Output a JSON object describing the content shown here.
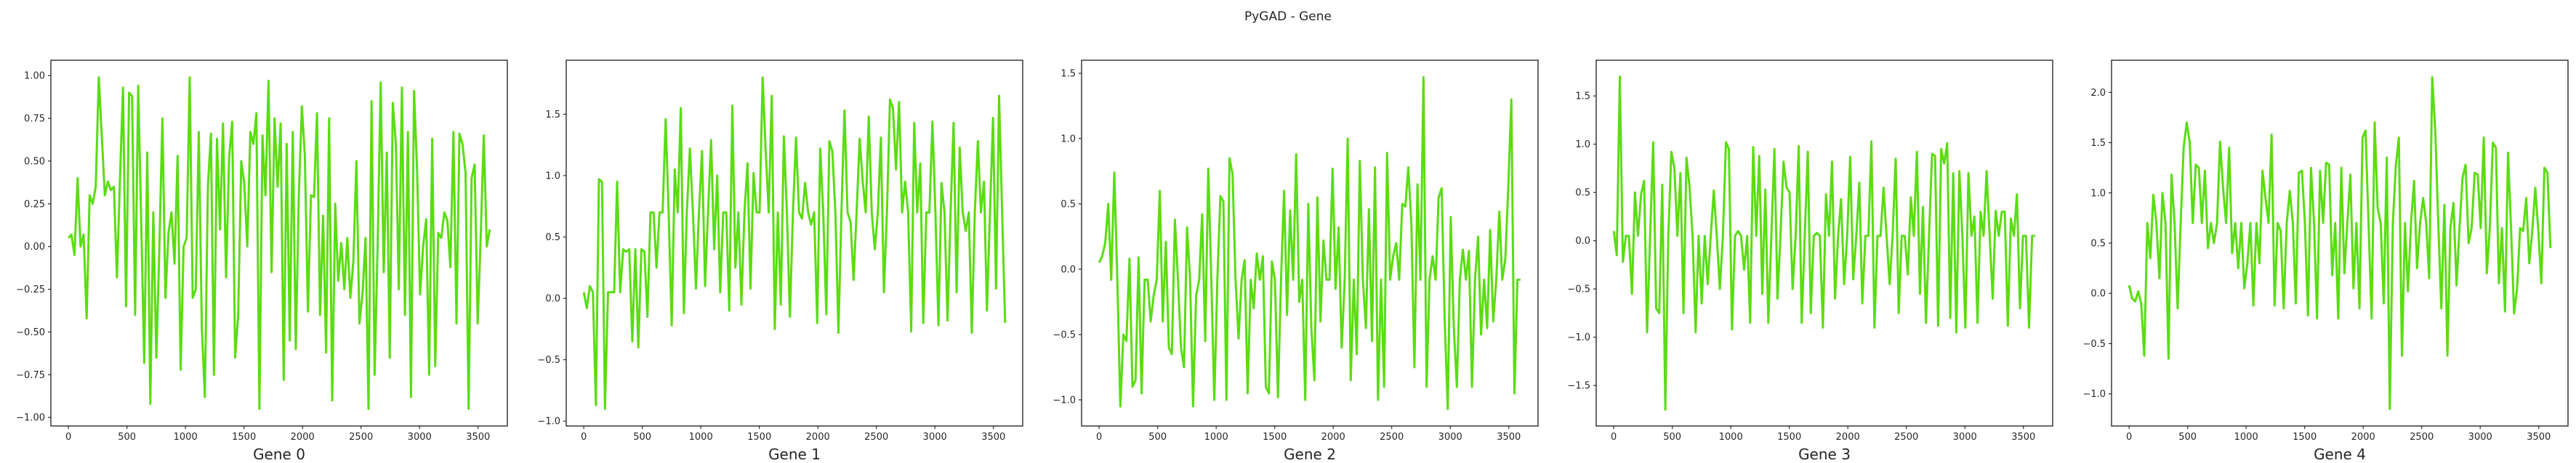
{
  "title": "PyGAD - Gene",
  "figure": {
    "background_color": "#ffffff",
    "line_color": "#5bdc13",
    "axis_color": "#2b2b2b",
    "text_color": "#262626"
  },
  "chart_data": [
    {
      "type": "line",
      "title": "Gene 0",
      "xlabel": "Gene 0",
      "ylabel": "",
      "legend": null,
      "grid": false,
      "x_max": 3600,
      "xlim": [
        -150,
        3750
      ],
      "ylim": [
        -1.05,
        1.09
      ],
      "xticks": [
        0,
        500,
        1000,
        1500,
        2000,
        2500,
        3000,
        3500
      ],
      "yticks": [
        1.0,
        0.75,
        0.5,
        0.25,
        0.0,
        -0.25,
        -0.5,
        -0.75,
        -1.0
      ],
      "ytick_labels": [
        "1.00",
        "0.75",
        "0.50",
        "0.25",
        "0.00",
        "−0.25",
        "−0.50",
        "−0.75",
        "−1.00"
      ],
      "baseline": 0.0,
      "values": [
        0.05,
        0.07,
        -0.05,
        0.4,
        0.0,
        0.07,
        -0.42,
        0.3,
        0.25,
        0.35,
        0.99,
        0.65,
        0.3,
        0.38,
        0.33,
        0.35,
        -0.18,
        0.4,
        0.93,
        -0.35,
        0.9,
        0.88,
        -0.4,
        0.94,
        0.16,
        -0.68,
        0.55,
        -0.92,
        0.2,
        -0.65,
        0.0,
        0.75,
        -0.3,
        0.08,
        0.2,
        -0.1,
        0.53,
        -0.72,
        0.0,
        0.05,
        0.99,
        -0.3,
        -0.25,
        0.67,
        -0.48,
        -0.88,
        0.35,
        0.66,
        -0.75,
        0.63,
        0.1,
        0.72,
        -0.18,
        0.52,
        0.73,
        -0.65,
        -0.4,
        0.5,
        0.37,
        0.0,
        0.67,
        0.6,
        0.78,
        -0.95,
        0.65,
        0.3,
        0.97,
        -0.15,
        0.75,
        0.35,
        0.72,
        -0.78,
        0.6,
        -0.55,
        0.67,
        -0.6,
        0.3,
        0.82,
        0.53,
        -0.38,
        0.3,
        0.29,
        0.78,
        -0.4,
        0.18,
        -0.62,
        0.75,
        -0.9,
        0.25,
        -0.2,
        0.02,
        -0.25,
        0.05,
        -0.3,
        -0.08,
        0.5,
        -0.45,
        -0.28,
        0.05,
        -0.95,
        0.85,
        -0.75,
        0.0,
        0.96,
        -0.15,
        0.55,
        -0.65,
        0.84,
        0.6,
        -0.25,
        0.93,
        -0.4,
        0.67,
        -0.88,
        0.91,
        0.45,
        -0.28,
        0.0,
        0.16,
        -0.75,
        0.63,
        -0.7,
        0.08,
        0.05,
        0.2,
        0.15,
        -0.12,
        0.67,
        -0.45,
        0.66,
        0.6,
        0.43,
        -0.95,
        0.4,
        0.48,
        -0.45,
        0.05,
        0.65,
        0.0,
        0.1
      ]
    },
    {
      "type": "line",
      "title": "Gene 1",
      "xlabel": "Gene 1",
      "ylabel": "",
      "legend": null,
      "grid": false,
      "x_max": 3600,
      "xlim": [
        -150,
        3750
      ],
      "ylim": [
        -1.04,
        1.94
      ],
      "xticks": [
        0,
        500,
        1000,
        1500,
        2000,
        2500,
        3000,
        3500
      ],
      "yticks": [
        1.5,
        1.0,
        0.5,
        0.0,
        -0.5,
        -1.0
      ],
      "ytick_labels": [
        "1.5",
        "1.0",
        "0.5",
        "0.0",
        "−0.5",
        "−1.0"
      ],
      "baseline": 0.7,
      "values": [
        0.05,
        -0.08,
        0.1,
        0.05,
        -0.87,
        0.97,
        0.95,
        -0.9,
        0.05,
        0.05,
        0.05,
        0.95,
        0.05,
        0.4,
        0.38,
        0.4,
        -0.35,
        0.4,
        -0.4,
        0.4,
        0.38,
        -0.15,
        0.7,
        0.7,
        0.25,
        0.7,
        0.7,
        1.46,
        0.7,
        -0.22,
        1.05,
        0.7,
        1.55,
        -0.12,
        0.7,
        1.22,
        0.7,
        0.08,
        0.7,
        1.2,
        0.1,
        0.7,
        1.29,
        0.4,
        1.0,
        0.05,
        0.7,
        0.7,
        -0.1,
        1.57,
        0.25,
        0.7,
        -0.05,
        0.7,
        1.1,
        0.08,
        1.02,
        0.7,
        0.7,
        1.8,
        1.2,
        0.7,
        1.65,
        -0.25,
        0.7,
        -0.05,
        1.32,
        0.7,
        -0.15,
        0.7,
        1.31,
        0.7,
        0.65,
        0.94,
        0.7,
        0.6,
        0.7,
        -0.2,
        1.22,
        0.7,
        -0.13,
        1.28,
        1.2,
        0.7,
        -0.28,
        0.7,
        1.53,
        0.7,
        0.62,
        0.15,
        0.7,
        1.3,
        0.96,
        0.7,
        1.48,
        0.7,
        0.4,
        0.7,
        1.31,
        0.05,
        0.7,
        1.62,
        1.55,
        1.05,
        1.6,
        0.7,
        0.95,
        0.7,
        -0.27,
        1.43,
        0.7,
        1.1,
        -0.2,
        0.7,
        0.7,
        1.44,
        0.7,
        -0.22,
        0.94,
        0.7,
        -0.18,
        0.7,
        1.43,
        0.05,
        1.23,
        0.7,
        0.55,
        0.7,
        -0.28,
        0.7,
        1.28,
        0.7,
        0.95,
        -0.1,
        0.7,
        1.47,
        0.08,
        1.65,
        0.7,
        -0.2
      ]
    },
    {
      "type": "line",
      "title": "Gene 2",
      "xlabel": "Gene 2",
      "ylabel": "",
      "legend": null,
      "grid": false,
      "x_max": 3600,
      "xlim": [
        -150,
        3750
      ],
      "ylim": [
        -1.2,
        1.6
      ],
      "xticks": [
        0,
        500,
        1000,
        1500,
        2000,
        2500,
        3000,
        3500
      ],
      "yticks": [
        1.5,
        1.0,
        0.5,
        0.0,
        -0.5,
        -1.0
      ],
      "ytick_labels": [
        "1.5",
        "1.0",
        "0.5",
        "0.0",
        "−0.5",
        "−1.0"
      ],
      "baseline": -0.08,
      "values": [
        0.05,
        0.1,
        0.2,
        0.5,
        -0.08,
        0.74,
        -0.08,
        -1.05,
        -0.5,
        -0.55,
        0.08,
        -0.9,
        -0.85,
        0.09,
        -0.95,
        -0.08,
        -0.08,
        -0.4,
        -0.2,
        -0.08,
        0.6,
        -0.4,
        0.21,
        -0.6,
        -0.65,
        0.38,
        -0.08,
        -0.6,
        -0.75,
        0.32,
        -0.08,
        -1.05,
        -0.2,
        -0.08,
        0.42,
        -0.55,
        0.77,
        -0.08,
        -1.0,
        -0.08,
        0.56,
        0.52,
        -1.0,
        0.85,
        0.73,
        -0.08,
        -0.53,
        -0.08,
        0.07,
        -0.95,
        -0.08,
        -0.3,
        0.12,
        -0.08,
        0.1,
        -0.9,
        -0.95,
        0.06,
        -0.08,
        -0.98,
        -0.08,
        0.6,
        -0.35,
        0.45,
        -0.08,
        0.88,
        -0.25,
        -0.08,
        -1.0,
        0.5,
        -0.45,
        -0.85,
        0.55,
        -0.4,
        0.22,
        -0.08,
        -0.08,
        0.77,
        -0.15,
        0.32,
        -0.6,
        -0.08,
        1.0,
        -0.85,
        -0.08,
        -0.65,
        0.83,
        -0.08,
        -0.45,
        0.46,
        -0.55,
        0.78,
        -1.0,
        -0.08,
        -0.9,
        0.89,
        -0.08,
        0.1,
        0.2,
        -0.08,
        0.5,
        0.48,
        0.78,
        0.35,
        -0.75,
        0.65,
        -0.08,
        1.47,
        -0.9,
        -0.08,
        0.1,
        -0.08,
        0.55,
        0.62,
        -0.4,
        -1.07,
        0.4,
        -0.45,
        -0.9,
        -0.08,
        0.15,
        -0.08,
        0.14,
        -0.9,
        -0.08,
        0.25,
        -0.5,
        -0.08,
        -0.45,
        0.3,
        -0.4,
        -0.08,
        0.44,
        -0.08,
        0.08,
        0.65,
        1.3,
        -0.95,
        -0.08,
        -0.08
      ]
    },
    {
      "type": "line",
      "title": "Gene 3",
      "xlabel": "Gene 3",
      "ylabel": "",
      "legend": null,
      "grid": false,
      "x_max": 3600,
      "xlim": [
        -150,
        3750
      ],
      "ylim": [
        -1.92,
        1.87
      ],
      "xticks": [
        0,
        500,
        1000,
        1500,
        2000,
        2500,
        3000,
        3500
      ],
      "yticks": [
        1.5,
        1.0,
        0.5,
        0.0,
        -0.5,
        -1.0,
        -1.5
      ],
      "ytick_labels": [
        "1.5",
        "1.0",
        "0.5",
        "0.0",
        "−0.5",
        "−1.0",
        "−1.5"
      ],
      "baseline": 0.05,
      "values": [
        0.1,
        -0.15,
        1.7,
        -0.22,
        0.05,
        0.05,
        -0.55,
        0.5,
        0.05,
        0.48,
        0.62,
        -0.95,
        0.05,
        1.02,
        -0.7,
        -0.75,
        0.58,
        -1.75,
        0.05,
        0.92,
        0.75,
        0.05,
        0.7,
        -0.75,
        0.86,
        0.56,
        0.05,
        -0.95,
        0.05,
        -0.65,
        0.05,
        -0.45,
        0.05,
        0.52,
        0.05,
        -0.5,
        0.05,
        1.02,
        0.95,
        -0.92,
        0.05,
        0.1,
        0.05,
        -0.3,
        0.05,
        -0.85,
        0.97,
        0.05,
        0.88,
        -0.55,
        0.53,
        -0.85,
        0.05,
        0.95,
        -0.6,
        0.05,
        0.82,
        0.55,
        0.5,
        -0.5,
        0.05,
        0.98,
        -0.85,
        0.05,
        0.92,
        -0.75,
        0.05,
        0.08,
        0.05,
        -0.9,
        0.48,
        0.05,
        0.82,
        -0.6,
        0.05,
        0.43,
        -0.45,
        0.05,
        0.87,
        -0.4,
        0.05,
        0.6,
        -0.65,
        0.05,
        0.05,
        1.03,
        -0.9,
        0.05,
        0.05,
        0.55,
        0.05,
        -0.45,
        0.05,
        0.85,
        -0.75,
        0.05,
        0.05,
        -0.35,
        0.45,
        0.05,
        0.92,
        -0.55,
        0.35,
        -0.85,
        0.05,
        0.9,
        0.88,
        -0.88,
        0.95,
        0.8,
        1.01,
        -0.8,
        0.7,
        -0.95,
        0.72,
        0.05,
        -0.9,
        0.7,
        0.05,
        0.25,
        -0.85,
        0.3,
        0.05,
        0.72,
        0.05,
        -0.6,
        0.31,
        0.05,
        0.3,
        0.3,
        -0.88,
        0.23,
        0.05,
        0.48,
        -0.7,
        0.05,
        0.05,
        -0.9,
        0.05,
        0.05
      ]
    },
    {
      "type": "line",
      "title": "Gene 4",
      "xlabel": "Gene 4",
      "ylabel": "",
      "legend": null,
      "grid": false,
      "x_max": 3600,
      "xlim": [
        -150,
        3750
      ],
      "ylim": [
        -1.32,
        2.32
      ],
      "xticks": [
        0,
        500,
        1000,
        1500,
        2000,
        2500,
        3000,
        3500
      ],
      "yticks": [
        2.0,
        1.5,
        1.0,
        0.5,
        0.0,
        -0.5,
        -1.0
      ],
      "ytick_labels": [
        "2.0",
        "1.5",
        "1.0",
        "0.5",
        "0.0",
        "−0.5",
        "−1.0"
      ],
      "baseline": 0.7,
      "values": [
        0.08,
        -0.05,
        -0.08,
        0.02,
        -0.1,
        -0.62,
        0.7,
        0.35,
        0.98,
        0.7,
        0.15,
        1.0,
        0.7,
        -0.65,
        1.18,
        0.7,
        -0.15,
        0.7,
        1.45,
        1.7,
        1.5,
        0.7,
        1.28,
        1.25,
        0.7,
        1.22,
        0.45,
        0.7,
        0.5,
        0.7,
        1.51,
        1.05,
        0.7,
        1.45,
        0.4,
        0.7,
        0.25,
        0.7,
        0.05,
        0.3,
        0.7,
        -0.12,
        0.7,
        0.3,
        1.22,
        0.95,
        0.7,
        1.58,
        -0.12,
        0.7,
        0.62,
        -0.15,
        0.7,
        1.02,
        0.7,
        -0.1,
        1.2,
        1.22,
        0.7,
        -0.22,
        1.25,
        0.7,
        -0.25,
        1.22,
        0.7,
        1.3,
        1.28,
        0.18,
        0.7,
        -0.25,
        1.25,
        0.2,
        0.7,
        1.18,
        0.05,
        0.7,
        -0.15,
        1.55,
        1.62,
        0.7,
        -0.25,
        1.7,
        0.85,
        0.7,
        -0.1,
        1.35,
        -1.15,
        0.7,
        1.28,
        1.55,
        -0.62,
        0.7,
        0.02,
        0.7,
        1.12,
        0.25,
        0.7,
        0.95,
        0.7,
        0.15,
        2.15,
        1.62,
        0.7,
        -0.15,
        0.88,
        -0.62,
        0.65,
        0.9,
        0.08,
        0.65,
        1.15,
        1.28,
        0.5,
        0.65,
        1.2,
        1.18,
        0.65,
        1.55,
        0.2,
        0.65,
        1.5,
        1.45,
        0.1,
        0.65,
        -0.18,
        1.4,
        0.65,
        -0.2,
        0.05,
        0.65,
        0.62,
        0.95,
        0.3,
        0.62,
        1.05,
        0.62,
        0.1,
        1.25,
        1.2,
        0.45
      ]
    }
  ]
}
